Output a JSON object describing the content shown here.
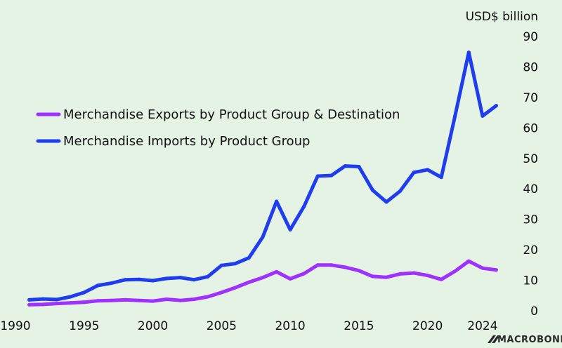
{
  "chart_data": {
    "type": "line",
    "unit_label": "USD$ billion",
    "x": [
      1991,
      1992,
      1993,
      1994,
      1995,
      1996,
      1997,
      1998,
      1999,
      2000,
      2001,
      2002,
      2003,
      2004,
      2005,
      2006,
      2007,
      2008,
      2009,
      2010,
      2011,
      2012,
      2013,
      2014,
      2015,
      2016,
      2017,
      2018,
      2019,
      2020,
      2021,
      2022,
      2023,
      2024,
      2025
    ],
    "x_ticks": [
      "1990",
      "1995",
      "2000",
      "2005",
      "2010",
      "2015",
      "2020",
      "2024"
    ],
    "x_tick_values": [
      1990,
      1995,
      2000,
      2005,
      2010,
      2015,
      2020,
      2024
    ],
    "xlim": [
      1990,
      2026
    ],
    "y_ticks": [
      "0",
      "10",
      "20",
      "30",
      "40",
      "50",
      "60",
      "70",
      "80",
      "90"
    ],
    "ylim": [
      0,
      90
    ],
    "y_axis_side": "right",
    "legend_position": "center-left",
    "series": [
      {
        "name": "Merchandise Exports by Product Group & Destination",
        "color": "#a030ff",
        "values": [
          2.0,
          2.1,
          2.4,
          2.6,
          2.8,
          3.3,
          3.4,
          3.6,
          3.4,
          3.2,
          3.8,
          3.4,
          3.8,
          4.6,
          6.0,
          7.6,
          9.4,
          10.9,
          12.8,
          10.5,
          12.2,
          15.0,
          15.0,
          14.3,
          13.2,
          11.3,
          11.0,
          12.1,
          12.4,
          11.6,
          10.3,
          13.0,
          16.3,
          14.0,
          13.4
        ]
      },
      {
        "name": "Merchandise Imports by Product Group",
        "color": "#1f3cf0",
        "values": [
          3.6,
          3.9,
          3.7,
          4.6,
          6.0,
          8.3,
          9.1,
          10.2,
          10.3,
          9.9,
          10.6,
          10.9,
          10.2,
          11.2,
          14.9,
          15.5,
          17.4,
          24.2,
          35.9,
          26.6,
          34.2,
          44.2,
          44.4,
          47.5,
          47.3,
          39.6,
          35.7,
          39.3,
          45.4,
          46.3,
          43.8,
          64.0,
          84.8,
          63.9,
          67.3
        ]
      }
    ]
  },
  "brand": {
    "logo_text": "MACROBOND",
    "logo_color": "#2a2a2a"
  },
  "colors": {
    "background": "#e4f3e4",
    "text": "#111111"
  }
}
